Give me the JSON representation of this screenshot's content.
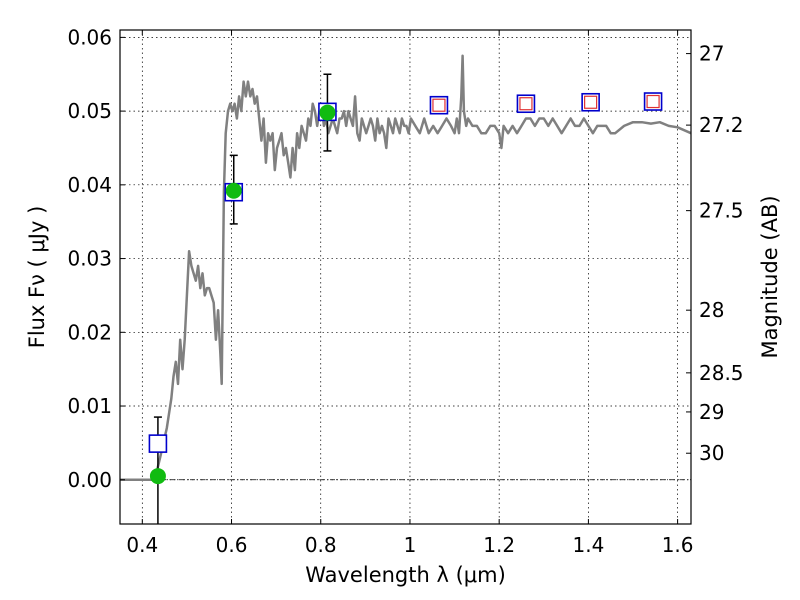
{
  "chart_data": {
    "type": "scatter",
    "xlabel": "Wavelength  λ (μm)",
    "ylabel": "Flux  Fν ( μJy )",
    "ylabel_right": "Magnitude (AB)",
    "xlim": [
      0.35,
      1.63
    ],
    "ylim": [
      -0.006,
      0.061
    ],
    "grid": true,
    "x_ticks": [
      {
        "value": 0.4,
        "label": "0.4"
      },
      {
        "value": 0.6,
        "label": "0.6"
      },
      {
        "value": 0.8,
        "label": "0.8"
      },
      {
        "value": 1.0,
        "label": "1"
      },
      {
        "value": 1.2,
        "label": "1.2"
      },
      {
        "value": 1.4,
        "label": "1.4"
      },
      {
        "value": 1.6,
        "label": "1.6"
      }
    ],
    "y_ticks": [
      {
        "value": 0.0,
        "label": "0.00"
      },
      {
        "value": 0.01,
        "label": "0.01"
      },
      {
        "value": 0.02,
        "label": "0.02"
      },
      {
        "value": 0.03,
        "label": "0.03"
      },
      {
        "value": 0.04,
        "label": "0.04"
      },
      {
        "value": 0.05,
        "label": "0.05"
      },
      {
        "value": 0.06,
        "label": "0.06"
      }
    ],
    "mag_ticks": [
      {
        "flux": 0.0578,
        "label": "27"
      },
      {
        "flux": 0.0481,
        "label": "27.2"
      },
      {
        "flux": 0.0365,
        "label": "27.5"
      },
      {
        "flux": 0.023,
        "label": "28"
      },
      {
        "flux": 0.0145,
        "label": "28.5"
      },
      {
        "flux": 0.0092,
        "label": "29"
      },
      {
        "flux": 0.0036,
        "label": "30"
      }
    ],
    "model_spectrum": {
      "color": "#808080",
      "x": [
        0.35,
        0.42,
        0.43,
        0.44,
        0.455,
        0.465,
        0.47,
        0.475,
        0.48,
        0.485,
        0.49,
        0.495,
        0.5,
        0.505,
        0.51,
        0.515,
        0.52,
        0.525,
        0.53,
        0.535,
        0.54,
        0.545,
        0.55,
        0.555,
        0.56,
        0.565,
        0.57,
        0.575,
        0.578,
        0.583,
        0.587,
        0.592,
        0.597,
        0.602,
        0.607,
        0.612,
        0.617,
        0.622,
        0.627,
        0.632,
        0.637,
        0.642,
        0.647,
        0.652,
        0.657,
        0.662,
        0.667,
        0.672,
        0.677,
        0.682,
        0.687,
        0.692,
        0.697,
        0.702,
        0.707,
        0.712,
        0.717,
        0.722,
        0.727,
        0.732,
        0.737,
        0.742,
        0.747,
        0.752,
        0.757,
        0.762,
        0.767,
        0.772,
        0.777,
        0.782,
        0.787,
        0.792,
        0.797,
        0.802,
        0.807,
        0.812,
        0.817,
        0.822,
        0.827,
        0.832,
        0.837,
        0.842,
        0.847,
        0.852,
        0.857,
        0.862,
        0.867,
        0.872,
        0.877,
        0.882,
        0.887,
        0.892,
        0.897,
        0.902,
        0.907,
        0.912,
        0.917,
        0.922,
        0.927,
        0.932,
        0.937,
        0.942,
        0.947,
        0.952,
        0.957,
        0.962,
        0.967,
        0.972,
        0.977,
        0.982,
        0.987,
        0.992,
        0.997,
        1.002,
        1.012,
        1.022,
        1.032,
        1.042,
        1.052,
        1.062,
        1.072,
        1.082,
        1.092,
        1.1,
        1.105,
        1.11,
        1.115,
        1.118,
        1.121,
        1.126,
        1.13,
        1.14,
        1.15,
        1.16,
        1.17,
        1.18,
        1.19,
        1.2,
        1.205,
        1.21,
        1.22,
        1.23,
        1.24,
        1.25,
        1.26,
        1.27,
        1.28,
        1.29,
        1.3,
        1.31,
        1.32,
        1.33,
        1.34,
        1.35,
        1.36,
        1.37,
        1.38,
        1.39,
        1.4,
        1.41,
        1.42,
        1.43,
        1.44,
        1.45,
        1.46,
        1.48,
        1.5,
        1.52,
        1.54,
        1.56,
        1.58,
        1.6,
        1.63
      ],
      "y": [
        0.0,
        0.0,
        0.0005,
        0.003,
        0.007,
        0.011,
        0.014,
        0.016,
        0.013,
        0.019,
        0.015,
        0.019,
        0.025,
        0.031,
        0.029,
        0.028,
        0.027,
        0.029,
        0.026,
        0.028,
        0.025,
        0.026,
        0.026,
        0.025,
        0.024,
        0.019,
        0.023,
        0.017,
        0.013,
        0.039,
        0.047,
        0.05,
        0.051,
        0.05,
        0.051,
        0.049,
        0.052,
        0.05,
        0.054,
        0.052,
        0.054,
        0.052,
        0.053,
        0.051,
        0.052,
        0.049,
        0.046,
        0.049,
        0.043,
        0.047,
        0.046,
        0.047,
        0.042,
        0.045,
        0.046,
        0.047,
        0.044,
        0.045,
        0.043,
        0.041,
        0.045,
        0.042,
        0.047,
        0.045,
        0.048,
        0.047,
        0.046,
        0.049,
        0.048,
        0.051,
        0.05,
        0.048,
        0.05,
        0.051,
        0.048,
        0.049,
        0.047,
        0.048,
        0.049,
        0.048,
        0.047,
        0.049,
        0.049,
        0.05,
        0.048,
        0.05,
        0.049,
        0.048,
        0.052,
        0.047,
        0.046,
        0.049,
        0.048,
        0.047,
        0.048,
        0.049,
        0.048,
        0.046,
        0.049,
        0.047,
        0.048,
        0.047,
        0.045,
        0.049,
        0.048,
        0.047,
        0.049,
        0.048,
        0.047,
        0.049,
        0.048,
        0.048,
        0.047,
        0.049,
        0.048,
        0.047,
        0.049,
        0.047,
        0.048,
        0.047,
        0.048,
        0.049,
        0.048,
        0.047,
        0.049,
        0.047,
        0.052,
        0.0575,
        0.05,
        0.048,
        0.049,
        0.048,
        0.048,
        0.047,
        0.047,
        0.048,
        0.048,
        0.047,
        0.045,
        0.048,
        0.047,
        0.048,
        0.047,
        0.048,
        0.049,
        0.049,
        0.048,
        0.049,
        0.049,
        0.048,
        0.049,
        0.048,
        0.047,
        0.048,
        0.049,
        0.048,
        0.048,
        0.049,
        0.048,
        0.047,
        0.048,
        0.048,
        0.048,
        0.047,
        0.047,
        0.048,
        0.0485,
        0.0485,
        0.0483,
        0.0485,
        0.048,
        0.0478,
        0.047
      ]
    },
    "squares_blue": {
      "color": "#0000cc",
      "x": [
        0.435,
        0.605,
        0.815,
        1.065,
        1.26,
        1.405,
        1.545
      ],
      "y": [
        0.0049,
        0.039,
        0.0499,
        0.0508,
        0.051,
        0.0512,
        0.0513
      ]
    },
    "squares_red": {
      "color": "#e03030",
      "x": [
        1.065,
        1.26,
        1.405,
        1.545
      ],
      "y": [
        0.0508,
        0.051,
        0.0512,
        0.0513
      ]
    },
    "observed_points": {
      "color": "#11bb11",
      "x": [
        0.435,
        0.605,
        0.815
      ],
      "y": [
        0.0005,
        0.0392,
        0.0498
      ],
      "err_low": [
        0.0065,
        0.0045,
        0.0052
      ],
      "err_high": [
        0.008,
        0.0048,
        0.0052
      ]
    }
  }
}
